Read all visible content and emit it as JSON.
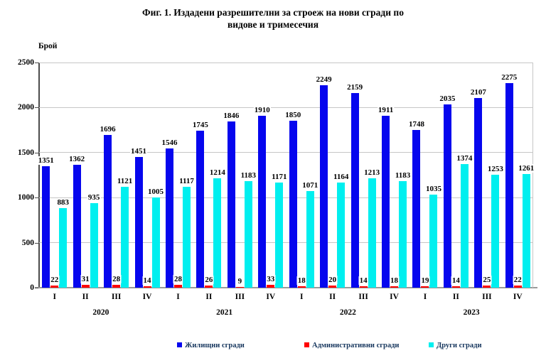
{
  "figure": {
    "title_line1": "Фиг. 1. Издадени разрешителни за строеж на нови сгради по",
    "title_line2": "видове и тримесечия"
  },
  "chart_data": {
    "type": "bar",
    "title": "Фиг. 1. Издадени разрешителни за строеж на нови сгради по видове и тримесечия",
    "xlabel": "",
    "ylabel": "Брой",
    "ylim": [
      0,
      2500
    ],
    "yticks": [
      0,
      500,
      1000,
      1500,
      2000,
      2500
    ],
    "grid": true,
    "legend_position": "bottom",
    "years": [
      "2020",
      "2021",
      "2022",
      "2023"
    ],
    "quarters_per_year": [
      "I",
      "II",
      "III",
      "IV"
    ],
    "x_quarter_labels": [
      "I",
      "II",
      "III",
      "IV",
      "I",
      "II",
      "III",
      "IV",
      "I",
      "II",
      "III",
      "IV",
      "I",
      "II",
      "III",
      "IV"
    ],
    "series": [
      {
        "name": "Жилищни сгради",
        "color": "#0606EE",
        "values": [
          1351,
          1362,
          1696,
          1451,
          1546,
          1745,
          1846,
          1910,
          1850,
          2249,
          2159,
          1911,
          1748,
          2035,
          2107,
          2275
        ]
      },
      {
        "name": "Административни сгради",
        "color": "#FF0000",
        "values": [
          22,
          31,
          28,
          14,
          28,
          26,
          9,
          33,
          18,
          20,
          14,
          18,
          19,
          14,
          25,
          22
        ]
      },
      {
        "name": "Други сгради",
        "color": "#00EFEF",
        "values": [
          883,
          935,
          1121,
          1005,
          1117,
          1214,
          1183,
          1171,
          1071,
          1164,
          1213,
          1183,
          1035,
          1374,
          1253,
          1261
        ]
      }
    ],
    "colors": {
      "grid": "#C6C6C6",
      "axis_y": "#4D4D4D",
      "axis_x": "#9A9A9A",
      "tick": "#4D4D4D",
      "label_text": "#000000",
      "legend_text": "#17375E",
      "background": "#FFFFFF"
    }
  }
}
